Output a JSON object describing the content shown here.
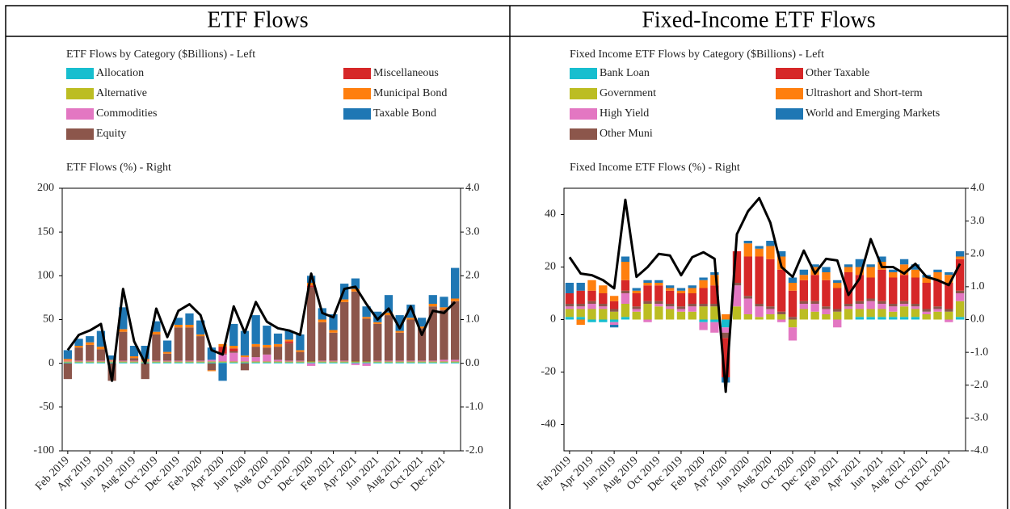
{
  "header": [
    "ETF Flows",
    "Fixed-Income ETF Flows"
  ],
  "chart_data": [
    {
      "type": "bar",
      "stacked": true,
      "title": "ETF Flows by Category ($Billions) - Left",
      "subtitle": "ETF Flows (%) - Right",
      "categories": [
        "Feb 2019",
        null,
        "Apr 2019",
        null,
        "Jun 2019",
        null,
        "Aug 2019",
        null,
        "Oct 2019",
        null,
        "Dec 2019",
        null,
        "Feb 2020",
        null,
        "Apr 2020",
        null,
        "Jun 2020",
        null,
        "Aug 2020",
        null,
        "Oct 2020",
        null,
        "Dec 2020",
        null,
        "Feb 2021",
        null,
        "Apr 2021",
        null,
        "Jun 2021",
        null,
        "Aug 2021",
        null,
        "Oct 2021",
        null,
        "Dec 2021",
        null
      ],
      "series": [
        {
          "name": "Allocation",
          "color": "#17becf",
          "values": [
            1,
            1,
            1,
            1,
            1,
            1,
            1,
            1,
            1,
            1,
            1,
            1,
            1,
            1,
            1,
            1,
            1,
            1,
            1,
            1,
            1,
            1,
            1,
            1,
            1,
            1,
            1,
            1,
            1,
            1,
            1,
            1,
            1,
            1,
            1,
            1
          ]
        },
        {
          "name": "Alternative",
          "color": "#bcbd22",
          "values": [
            1,
            1,
            1,
            1,
            1,
            1,
            1,
            1,
            1,
            1,
            1,
            1,
            1,
            1,
            1,
            1,
            1,
            1,
            1,
            1,
            1,
            1,
            1,
            1,
            1,
            1,
            1,
            1,
            1,
            1,
            1,
            1,
            1,
            1,
            1,
            1
          ]
        },
        {
          "name": "Commodities",
          "color": "#e377c2",
          "values": [
            1,
            1,
            1,
            1,
            1,
            1,
            1,
            1,
            1,
            1,
            1,
            1,
            1,
            2,
            8,
            10,
            5,
            5,
            8,
            2,
            1,
            1,
            -3,
            1,
            1,
            1,
            -2,
            -3,
            1,
            1,
            1,
            1,
            1,
            1,
            2,
            2
          ]
        },
        {
          "name": "Equity",
          "color": "#8c564b",
          "values": [
            -18,
            15,
            18,
            13,
            -20,
            33,
            3,
            -18,
            30,
            8,
            38,
            38,
            28,
            -8,
            1,
            2,
            -8,
            12,
            8,
            15,
            20,
            10,
            85,
            44,
            32,
            67,
            80,
            49,
            42,
            52,
            32,
            47,
            37,
            62,
            57,
            67
          ]
        },
        {
          "name": "Miscellaneous",
          "color": "#d62728",
          "values": [
            0,
            0,
            0,
            0,
            0,
            0,
            0,
            0,
            0,
            0,
            0,
            0,
            0,
            0,
            8,
            3,
            0,
            0,
            0,
            0,
            2,
            0,
            2,
            0,
            0,
            0,
            0,
            0,
            0,
            0,
            0,
            0,
            0,
            0,
            0,
            0
          ]
        },
        {
          "name": "Municipal Bond",
          "color": "#ff7f0e",
          "values": [
            2,
            2,
            3,
            3,
            1,
            3,
            2,
            2,
            3,
            2,
            3,
            3,
            2,
            -1,
            3,
            3,
            2,
            3,
            3,
            3,
            2,
            2,
            3,
            3,
            3,
            3,
            3,
            2,
            2,
            3,
            2,
            2,
            2,
            3,
            3,
            3
          ]
        },
        {
          "name": "Taxable Bond",
          "color": "#1f77b4",
          "values": [
            10,
            8,
            7,
            18,
            5,
            25,
            12,
            15,
            12,
            13,
            8,
            13,
            16,
            14,
            -20,
            25,
            28,
            33,
            22,
            12,
            10,
            18,
            8,
            13,
            18,
            18,
            12,
            12,
            12,
            20,
            18,
            15,
            10,
            10,
            12,
            35
          ]
        }
      ],
      "line": {
        "color": "#000000",
        "axis": "y2",
        "values": [
          0.3,
          0.65,
          0.75,
          0.9,
          -0.4,
          1.7,
          0.5,
          0.0,
          1.25,
          0.6,
          1.2,
          1.35,
          1.1,
          0.3,
          0.2,
          1.3,
          0.7,
          1.4,
          0.95,
          0.8,
          0.75,
          0.65,
          2.05,
          1.15,
          1.05,
          1.7,
          1.75,
          1.35,
          1.0,
          1.25,
          0.8,
          1.3,
          0.65,
          1.2,
          1.15,
          1.4
        ]
      },
      "ylim": [
        -100,
        200
      ],
      "yticks": [
        -100,
        -50,
        0,
        50,
        100,
        150,
        200
      ],
      "y2lim": [
        -2,
        4
      ],
      "y2ticks": [
        {
          "value": -2,
          "label": "-2.0"
        },
        {
          "value": -1,
          "label": "-1.0"
        },
        {
          "value": 0,
          "label": "0.0"
        },
        {
          "value": 1,
          "label": "1.0"
        },
        {
          "value": 2,
          "label": "2.0"
        },
        {
          "value": 3,
          "label": "3.0"
        },
        {
          "value": 4,
          "label": "4.0"
        }
      ],
      "grid": false
    },
    {
      "type": "bar",
      "stacked": true,
      "title": "Fixed Income ETF Flows by Category ($Billions) - Left",
      "subtitle": "Fixed Income ETF Flows (%) - Right",
      "categories": [
        "Feb 2019",
        null,
        "Apr 2019",
        null,
        "Jun 2019",
        null,
        "Aug 2019",
        null,
        "Oct 2019",
        null,
        "Dec 2019",
        null,
        "Feb 2020",
        null,
        "Apr 2020",
        null,
        "Jun 2020",
        null,
        "Aug 2020",
        null,
        "Oct 2020",
        null,
        "Dec 2020",
        null,
        "Feb 2021",
        null,
        "Apr 2021",
        null,
        "Jun 2021",
        null,
        "Aug 2021",
        null,
        "Oct 2021",
        null,
        "Dec 2021",
        null
      ],
      "series": [
        {
          "name": "Bank Loan",
          "color": "#17becf",
          "values": [
            1,
            1,
            -1,
            -1,
            -1,
            1,
            0,
            0,
            0,
            0,
            0,
            0,
            -1,
            -1,
            -3,
            0,
            0,
            0,
            0,
            0,
            0,
            0,
            0,
            0,
            0,
            0,
            1,
            1,
            1,
            1,
            1,
            1,
            0,
            0,
            0,
            1
          ]
        },
        {
          "name": "Government",
          "color": "#bcbd22",
          "values": [
            3,
            3,
            4,
            4,
            3,
            5,
            3,
            6,
            5,
            4,
            3,
            3,
            5,
            5,
            0,
            5,
            2,
            1,
            2,
            2,
            -3,
            4,
            3,
            2,
            3,
            4,
            3,
            3,
            3,
            2,
            4,
            3,
            2,
            3,
            3,
            6
          ]
        },
        {
          "name": "High Yield",
          "color": "#e377c2",
          "values": [
            1,
            1,
            2,
            1,
            -1,
            4,
            1,
            -1,
            1,
            1,
            1,
            2,
            -3,
            -4,
            -2,
            8,
            6,
            4,
            2,
            -1,
            -5,
            2,
            3,
            2,
            -3,
            1,
            2,
            3,
            2,
            2,
            1,
            1,
            1,
            1,
            -1,
            3
          ]
        },
        {
          "name": "Other Muni",
          "color": "#8c564b",
          "values": [
            1,
            1,
            1,
            1,
            1,
            1,
            1,
            1,
            1,
            1,
            1,
            1,
            1,
            1,
            -2,
            1,
            1,
            1,
            1,
            1,
            1,
            1,
            1,
            1,
            1,
            1,
            1,
            1,
            1,
            1,
            1,
            1,
            1,
            1,
            1,
            1
          ]
        },
        {
          "name": "Other Taxable",
          "color": "#d62728",
          "values": [
            4,
            5,
            4,
            4,
            3,
            4,
            5,
            6,
            6,
            5,
            5,
            4,
            6,
            7,
            -15,
            12,
            15,
            18,
            18,
            16,
            10,
            8,
            10,
            10,
            8,
            12,
            10,
            8,
            12,
            10,
            10,
            10,
            10,
            10,
            10,
            12
          ]
        },
        {
          "name": "Ultrashort and Short-term",
          "color": "#ff7f0e",
          "values": [
            0,
            -2,
            4,
            3,
            2,
            7,
            1,
            1,
            1,
            1,
            1,
            2,
            3,
            4,
            2,
            0,
            5,
            3,
            5,
            5,
            3,
            2,
            3,
            3,
            2,
            2,
            3,
            4,
            3,
            2,
            4,
            3,
            2,
            3,
            3,
            1
          ]
        },
        {
          "name": "World and Emerging Markets",
          "color": "#1f77b4",
          "values": [
            4,
            3,
            0,
            0,
            -1,
            2,
            1,
            1,
            1,
            1,
            1,
            1,
            1,
            1,
            -2,
            0,
            1,
            1,
            2,
            2,
            2,
            2,
            1,
            2,
            1,
            1,
            3,
            1,
            2,
            1,
            2,
            2,
            1,
            1,
            1,
            2
          ]
        }
      ],
      "line": {
        "color": "#000000",
        "axis": "y2",
        "values": [
          1.9,
          1.4,
          1.35,
          1.2,
          0.95,
          3.65,
          1.3,
          1.6,
          2.0,
          1.95,
          1.35,
          1.9,
          2.05,
          1.85,
          -2.2,
          2.6,
          3.3,
          3.7,
          2.95,
          1.6,
          1.3,
          2.1,
          1.4,
          1.85,
          1.8,
          0.75,
          1.25,
          2.45,
          1.6,
          1.6,
          1.4,
          1.7,
          1.3,
          1.2,
          1.05,
          1.7
        ]
      },
      "ylim": [
        -50,
        50
      ],
      "yticks": [
        -40,
        -20,
        0,
        20,
        40
      ],
      "y2lim": [
        -4,
        4
      ],
      "y2ticks": [
        {
          "value": -4,
          "label": "-4.0"
        },
        {
          "value": -3,
          "label": "-3.0"
        },
        {
          "value": -2,
          "label": "-2.0"
        },
        {
          "value": -1,
          "label": "-1.0"
        },
        {
          "value": 0,
          "label": "0.0"
        },
        {
          "value": 1,
          "label": "1.0"
        },
        {
          "value": 2,
          "label": "2.0"
        },
        {
          "value": 3,
          "label": "3.0"
        },
        {
          "value": 4,
          "label": "4.0"
        }
      ],
      "grid": false
    }
  ]
}
